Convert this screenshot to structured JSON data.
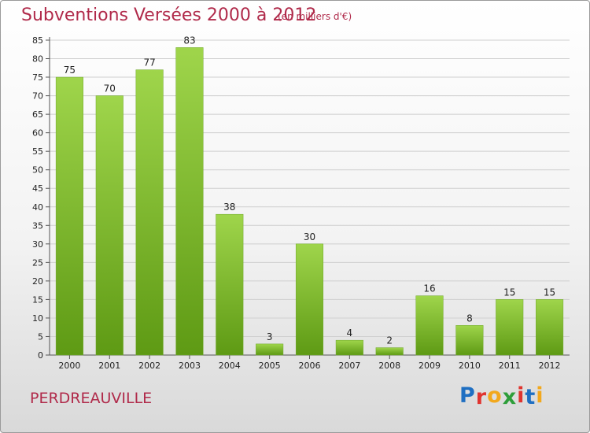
{
  "header": {
    "title": "Subventions Versées 2000 à 2012",
    "unit": "(en milliers d'€)"
  },
  "footer": {
    "commune": "PERDREAUVILLE",
    "logo_letters": [
      "P",
      "r",
      "o",
      "x",
      "i",
      "t",
      "i"
    ],
    "logo_colors": [
      "#1f6fc2",
      "#e0342f",
      "#f2a81d",
      "#2e9e3a",
      "#e0342f",
      "#1f6fc2",
      "#f2a81d"
    ]
  },
  "colors": {
    "bar_light": "#9fd54b",
    "bar_dark": "#5e9a14",
    "title": "#b02a4a",
    "grid": "#cfcfcf"
  },
  "chart_data": {
    "type": "bar",
    "title": "Subventions Versées 2000 à 2012",
    "subtitle": "(en milliers d'€)",
    "xlabel": "",
    "ylabel": "",
    "categories": [
      "2000",
      "2001",
      "2002",
      "2003",
      "2004",
      "2005",
      "2006",
      "2007",
      "2008",
      "2009",
      "2010",
      "2011",
      "2012"
    ],
    "values": [
      75,
      70,
      77,
      83,
      38,
      3,
      30,
      4,
      2,
      16,
      8,
      15,
      15
    ],
    "ylim": [
      0,
      85
    ],
    "ytick_step": 5,
    "grid": true,
    "legend": "none"
  }
}
